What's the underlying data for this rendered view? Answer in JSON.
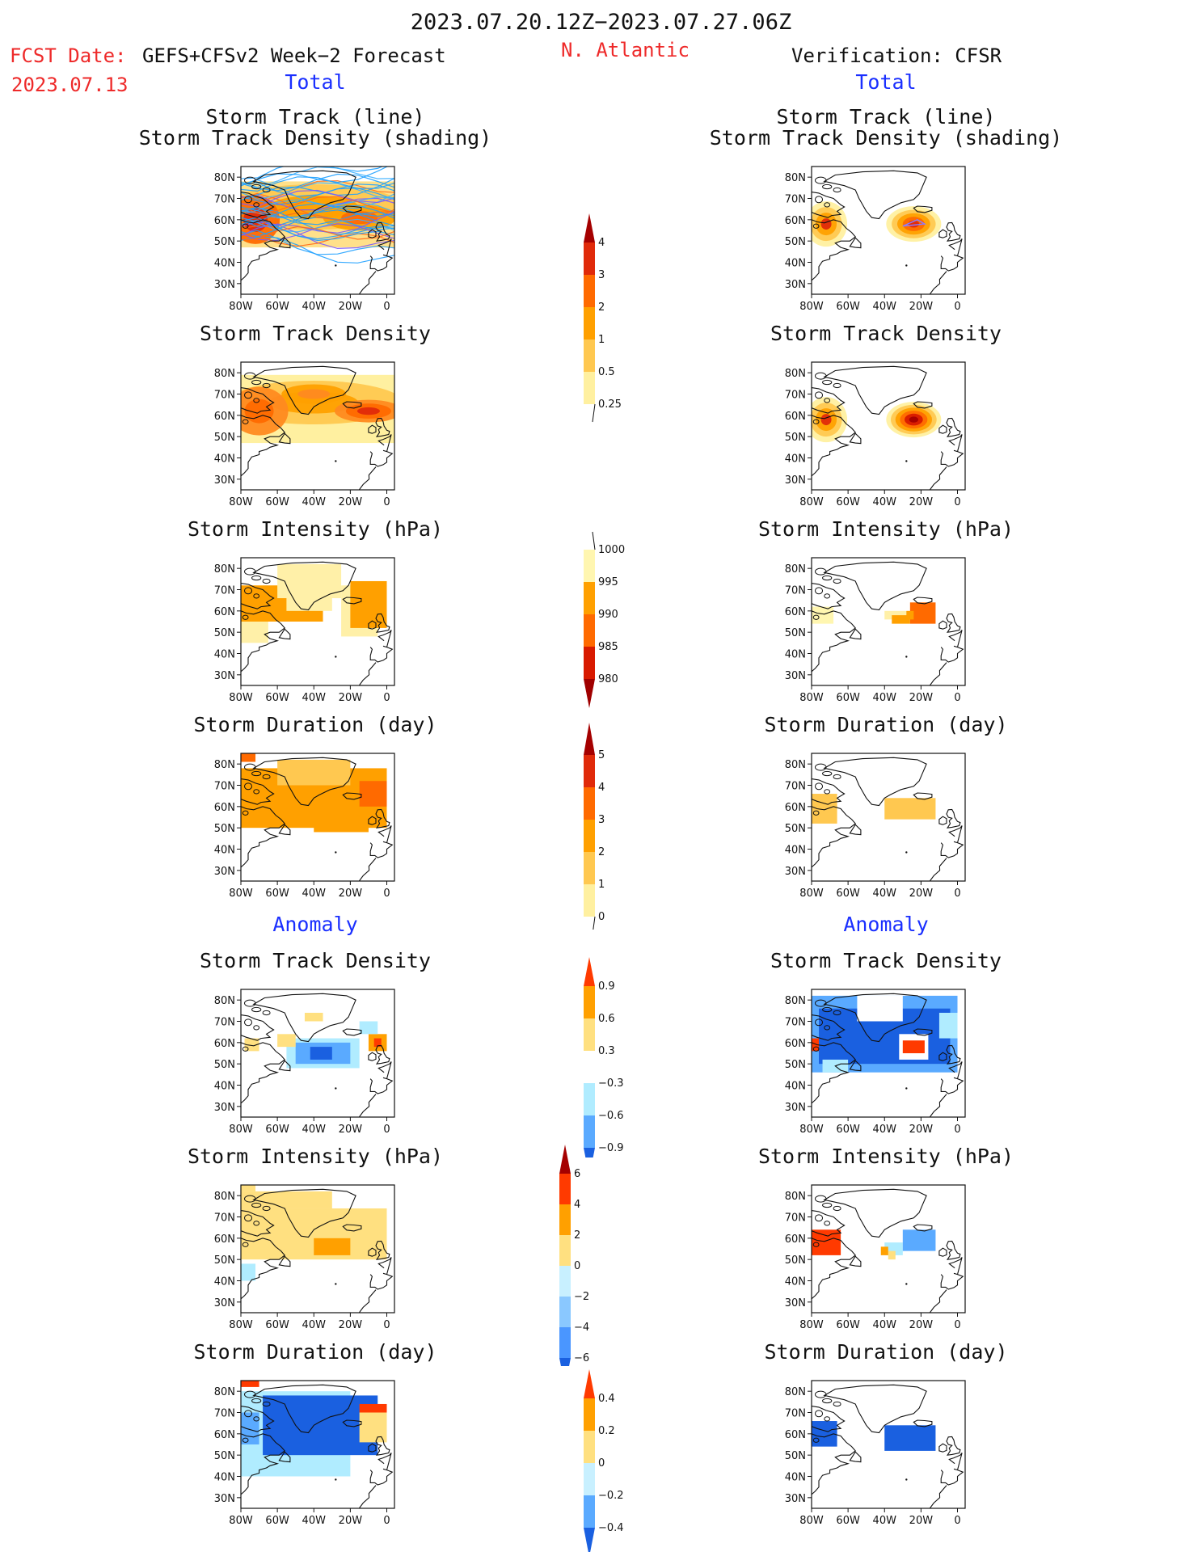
{
  "header": {
    "period": "2023.07.20.12Z−2023.07.27.06Z",
    "fcst_prefix": "FCST Date:",
    "fcst_model": "GEFS+CFSv2 Week−2 Forecast",
    "region": "N. Atlantic",
    "verification": "Verification: CFSR",
    "fcst_date": "2023.07.13"
  },
  "sections": {
    "total_label": "Total",
    "anomaly_label": "Anomaly"
  },
  "panel_titles": {
    "track_line": "Storm Track (line)",
    "track_density_shading": "Storm Track Density (shading)",
    "track_density": "Storm Track Density",
    "intensity": "Storm Intensity (hPa)",
    "duration": "Storm Duration (day)"
  },
  "axes": {
    "lat_ticks": [
      "80N",
      "70N",
      "60N",
      "50N",
      "40N",
      "30N"
    ],
    "lon_ticks": [
      "80W",
      "60W",
      "40W",
      "20W",
      "0"
    ]
  },
  "colorbars": {
    "density": {
      "labels": [
        "4",
        "3",
        "2",
        "1",
        "0.5",
        "0.25"
      ],
      "colors": [
        "#a50000",
        "#e02a0a",
        "#ff6a00",
        "#ffa000",
        "#ffc850",
        "#fff0a0"
      ]
    },
    "intensity": {
      "labels": [
        "1000",
        "995",
        "990",
        "985",
        "980"
      ],
      "colors": [
        "#fff6b0",
        "#ffa000",
        "#ff6a00",
        "#d81a00",
        "#a00000"
      ]
    },
    "duration": {
      "labels": [
        "5",
        "4",
        "3",
        "2",
        "1",
        "0"
      ],
      "colors": [
        "#a50000",
        "#e02a0a",
        "#ff6a00",
        "#ffa000",
        "#ffc850",
        "#fff0a0"
      ]
    },
    "anom_density": {
      "labels": [
        "0.9",
        "0.6",
        "0.3",
        "−0.3",
        "−0.6",
        "−0.9"
      ],
      "colors": [
        "#ff3a00",
        "#ffa000",
        "#ffe080",
        "#ffffff",
        "#b0ecff",
        "#5aaaff",
        "#1a60e0"
      ]
    },
    "anom_intensity": {
      "labels": [
        "6",
        "4",
        "2",
        "0",
        "−2",
        "−4",
        "−6"
      ],
      "colors": [
        "#a50000",
        "#ff3a00",
        "#ffa000",
        "#ffe080",
        "#c8f0ff",
        "#8ac8ff",
        "#4a96ff",
        "#1a60e0"
      ]
    },
    "anom_duration": {
      "labels": [
        "0.4",
        "0.2",
        "0",
        "−0.2",
        "−0.4"
      ],
      "colors": [
        "#ff3a00",
        "#ffa000",
        "#ffe080",
        "#c8f0ff",
        "#5aaaff",
        "#1a60e0"
      ]
    }
  },
  "chart_data": [
    {
      "type": "heatmap",
      "panel": "forecast-total-track",
      "title": "Storm Track (line) Storm Track Density (shading)",
      "xlim": [
        -80,
        0
      ],
      "ylim": [
        25,
        85
      ]
    },
    {
      "type": "heatmap",
      "panel": "forecast-total-density",
      "title": "Storm Track Density",
      "xlim": [
        -80,
        0
      ],
      "ylim": [
        25,
        85
      ]
    },
    {
      "type": "heatmap",
      "panel": "forecast-total-intensity",
      "title": "Storm Intensity (hPa)",
      "xlim": [
        -80,
        0
      ],
      "ylim": [
        25,
        85
      ]
    },
    {
      "type": "heatmap",
      "panel": "forecast-total-duration",
      "title": "Storm Duration (day)",
      "xlim": [
        -80,
        0
      ],
      "ylim": [
        25,
        85
      ]
    },
    {
      "type": "heatmap",
      "panel": "forecast-anomaly-density",
      "title": "Storm Track Density",
      "xlim": [
        -80,
        0
      ],
      "ylim": [
        25,
        85
      ]
    },
    {
      "type": "heatmap",
      "panel": "forecast-anomaly-intensity",
      "title": "Storm Intensity (hPa)",
      "xlim": [
        -80,
        0
      ],
      "ylim": [
        25,
        85
      ]
    },
    {
      "type": "heatmap",
      "panel": "forecast-anomaly-duration",
      "title": "Storm Duration (day)",
      "xlim": [
        -80,
        0
      ],
      "ylim": [
        25,
        85
      ]
    },
    {
      "type": "heatmap",
      "panel": "verification-total-track",
      "title": "Storm Track (line) Storm Track Density (shading)",
      "xlim": [
        -80,
        0
      ],
      "ylim": [
        25,
        85
      ]
    },
    {
      "type": "heatmap",
      "panel": "verification-total-density",
      "title": "Storm Track Density",
      "xlim": [
        -80,
        0
      ],
      "ylim": [
        25,
        85
      ]
    },
    {
      "type": "heatmap",
      "panel": "verification-total-intensity",
      "title": "Storm Intensity (hPa)",
      "xlim": [
        -80,
        0
      ],
      "ylim": [
        25,
        85
      ]
    },
    {
      "type": "heatmap",
      "panel": "verification-total-duration",
      "title": "Storm Duration (day)",
      "xlim": [
        -80,
        0
      ],
      "ylim": [
        25,
        85
      ]
    },
    {
      "type": "heatmap",
      "panel": "verification-anomaly-density",
      "title": "Storm Track Density",
      "xlim": [
        -80,
        0
      ],
      "ylim": [
        25,
        85
      ]
    },
    {
      "type": "heatmap",
      "panel": "verification-anomaly-intensity",
      "title": "Storm Intensity (hPa)",
      "xlim": [
        -80,
        0
      ],
      "ylim": [
        25,
        85
      ]
    },
    {
      "type": "heatmap",
      "panel": "verification-anomaly-duration",
      "title": "Storm Duration (day)",
      "xlim": [
        -80,
        0
      ],
      "ylim": [
        25,
        85
      ]
    }
  ]
}
